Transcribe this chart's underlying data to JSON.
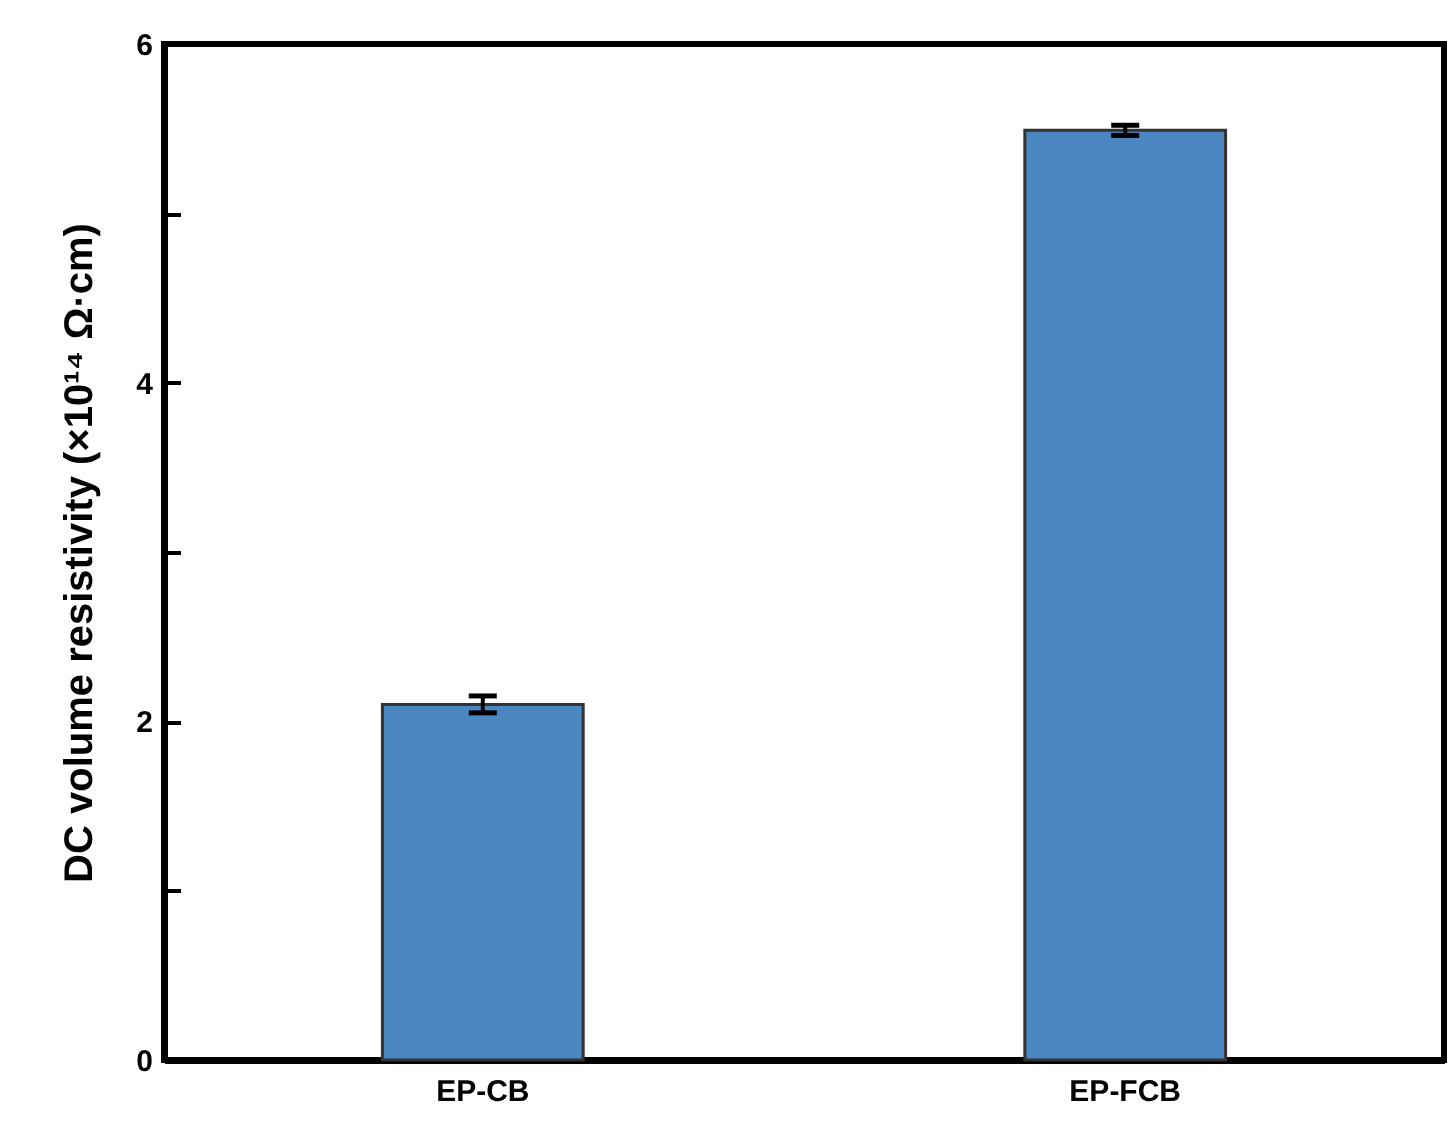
{
  "chart_data": {
    "type": "bar",
    "ylabel": "DC volume resistivity (×10¹⁴ Ω·cm)",
    "categories": [
      "EP-CB",
      "EP-FCB"
    ],
    "values": [
      2.1,
      5.49
    ],
    "errors": [
      0.05,
      0.03
    ],
    "color": "#4a86c0",
    "ylim": [
      0,
      6
    ],
    "yticks": [
      0,
      {
        "value": 1,
        "label": null
      },
      2,
      {
        "value": 3,
        "label": null
      },
      4,
      {
        "value": 5,
        "label": null
      },
      6
    ],
    "grid": false
  }
}
